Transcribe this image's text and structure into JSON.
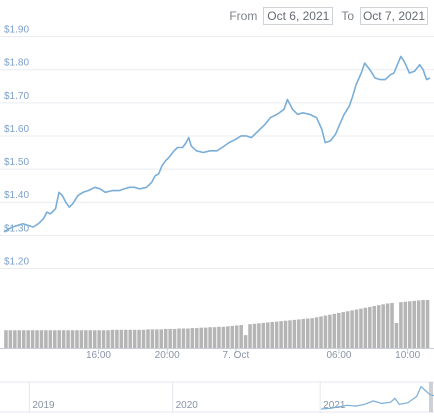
{
  "range_selector": {
    "from_label": "From",
    "from_value": "Oct 6, 2021",
    "to_label": "To",
    "to_value": "Oct 7, 2021"
  },
  "chart_data": {
    "type": "line",
    "title": "",
    "xlabel": "",
    "ylabel": "",
    "ylim": [
      1.15,
      1.95
    ],
    "yticks": [
      "$1.20",
      "$1.30",
      "$1.40",
      "$1.50",
      "$1.60",
      "$1.70",
      "$1.80",
      "$1.90"
    ],
    "ytick_values": [
      1.2,
      1.3,
      1.4,
      1.5,
      1.6,
      1.7,
      1.8,
      1.9
    ],
    "xticks": [
      "16:00",
      "20:00",
      "7. Oct",
      "06:00",
      "10:00"
    ],
    "xtick_hours": [
      16,
      20,
      24,
      30,
      34
    ],
    "xlim_hours": [
      10.5,
      35.3
    ],
    "grid": true,
    "line_color": "#7aaed8",
    "series": [
      {
        "values": [
          [
            10.5,
            1.31
          ],
          [
            10.8,
            1.32
          ],
          [
            11.0,
            1.325
          ],
          [
            11.3,
            1.33
          ],
          [
            11.6,
            1.335
          ],
          [
            11.9,
            1.33
          ],
          [
            12.2,
            1.325
          ],
          [
            12.5,
            1.335
          ],
          [
            12.8,
            1.35
          ],
          [
            13.0,
            1.37
          ],
          [
            13.2,
            1.365
          ],
          [
            13.5,
            1.38
          ],
          [
            13.7,
            1.43
          ],
          [
            13.9,
            1.42
          ],
          [
            14.1,
            1.4
          ],
          [
            14.3,
            1.385
          ],
          [
            14.5,
            1.395
          ],
          [
            14.8,
            1.42
          ],
          [
            15.1,
            1.43
          ],
          [
            15.4,
            1.435
          ],
          [
            15.8,
            1.445
          ],
          [
            16.1,
            1.44
          ],
          [
            16.4,
            1.43
          ],
          [
            16.8,
            1.435
          ],
          [
            17.2,
            1.435
          ],
          [
            17.5,
            1.44
          ],
          [
            17.8,
            1.445
          ],
          [
            18.1,
            1.445
          ],
          [
            18.4,
            1.44
          ],
          [
            18.8,
            1.445
          ],
          [
            19.1,
            1.46
          ],
          [
            19.3,
            1.48
          ],
          [
            19.5,
            1.485
          ],
          [
            19.7,
            1.51
          ],
          [
            19.9,
            1.525
          ],
          [
            20.1,
            1.535
          ],
          [
            20.4,
            1.555
          ],
          [
            20.6,
            1.565
          ],
          [
            20.9,
            1.565
          ],
          [
            21.1,
            1.58
          ],
          [
            21.25,
            1.595
          ],
          [
            21.4,
            1.57
          ],
          [
            21.7,
            1.555
          ],
          [
            22.1,
            1.55
          ],
          [
            22.5,
            1.555
          ],
          [
            22.9,
            1.555
          ],
          [
            23.2,
            1.565
          ],
          [
            23.6,
            1.58
          ],
          [
            24.0,
            1.59
          ],
          [
            24.3,
            1.6
          ],
          [
            24.6,
            1.6
          ],
          [
            24.9,
            1.595
          ],
          [
            25.3,
            1.615
          ],
          [
            25.7,
            1.635
          ],
          [
            26.0,
            1.655
          ],
          [
            26.4,
            1.665
          ],
          [
            26.8,
            1.68
          ],
          [
            27.0,
            1.71
          ],
          [
            27.3,
            1.68
          ],
          [
            27.6,
            1.665
          ],
          [
            27.9,
            1.67
          ],
          [
            28.3,
            1.665
          ],
          [
            28.7,
            1.655
          ],
          [
            29.0,
            1.62
          ],
          [
            29.2,
            1.58
          ],
          [
            29.5,
            1.585
          ],
          [
            29.8,
            1.605
          ],
          [
            30.0,
            1.63
          ],
          [
            30.3,
            1.665
          ],
          [
            30.6,
            1.69
          ],
          [
            30.8,
            1.72
          ],
          [
            31.0,
            1.755
          ],
          [
            31.3,
            1.79
          ],
          [
            31.5,
            1.82
          ],
          [
            31.8,
            1.8
          ],
          [
            32.1,
            1.775
          ],
          [
            32.4,
            1.77
          ],
          [
            32.7,
            1.77
          ],
          [
            33.0,
            1.785
          ],
          [
            33.2,
            1.79
          ],
          [
            33.4,
            1.815
          ],
          [
            33.6,
            1.84
          ],
          [
            33.8,
            1.825
          ],
          [
            34.1,
            1.79
          ],
          [
            34.4,
            1.795
          ],
          [
            34.7,
            1.815
          ],
          [
            34.9,
            1.8
          ],
          [
            35.1,
            1.77
          ],
          [
            35.3,
            1.775
          ]
        ]
      }
    ],
    "volume": {
      "bar_color": "#b5b5b5",
      "bar_count": 96,
      "relative_heights": [
        0.3,
        0.3,
        0.3,
        0.3,
        0.3,
        0.3,
        0.3,
        0.3,
        0.3,
        0.3,
        0.3,
        0.3,
        0.3,
        0.3,
        0.3,
        0.3,
        0.3,
        0.3,
        0.3,
        0.3,
        0.3,
        0.3,
        0.3,
        0.3,
        0.31,
        0.31,
        0.31,
        0.31,
        0.31,
        0.31,
        0.31,
        0.31,
        0.32,
        0.32,
        0.32,
        0.32,
        0.33,
        0.33,
        0.33,
        0.34,
        0.34,
        0.34,
        0.35,
        0.35,
        0.36,
        0.36,
        0.37,
        0.37,
        0.38,
        0.38,
        0.39,
        0.4,
        0.41,
        0.42,
        0.43,
        0.44,
        0.45,
        0.46,
        0.47,
        0.48,
        0.49,
        0.5,
        0.51,
        0.52,
        0.53,
        0.54,
        0.55,
        0.56,
        0.57,
        0.58,
        0.6,
        0.62,
        0.64,
        0.66,
        0.68,
        0.7,
        0.72,
        0.74,
        0.76,
        0.78,
        0.8,
        0.82,
        0.84,
        0.86,
        0.88,
        0.9,
        0.92,
        0.93,
        0.94,
        0.95,
        0.96,
        0.97,
        0.98,
        0.99,
        1.0,
        1.0
      ],
      "short_bar_indices": [
        54,
        88
      ]
    },
    "navigator": {
      "labels": [
        "2019",
        "2020",
        "2021"
      ],
      "label_positions": [
        0.07,
        0.4,
        0.74
      ],
      "line_color": "#7aaed8",
      "series": [
        [
          0.74,
          0.04
        ],
        [
          0.76,
          0.06
        ],
        [
          0.78,
          0.12
        ],
        [
          0.8,
          0.18
        ],
        [
          0.82,
          0.15
        ],
        [
          0.84,
          0.22
        ],
        [
          0.86,
          0.35
        ],
        [
          0.88,
          0.25
        ],
        [
          0.9,
          0.3
        ],
        [
          0.91,
          0.45
        ],
        [
          0.92,
          0.22
        ],
        [
          0.94,
          0.28
        ],
        [
          0.96,
          0.52
        ],
        [
          0.97,
          0.9
        ],
        [
          0.98,
          0.75
        ],
        [
          0.99,
          0.6
        ],
        [
          1.0,
          0.55
        ]
      ]
    }
  }
}
